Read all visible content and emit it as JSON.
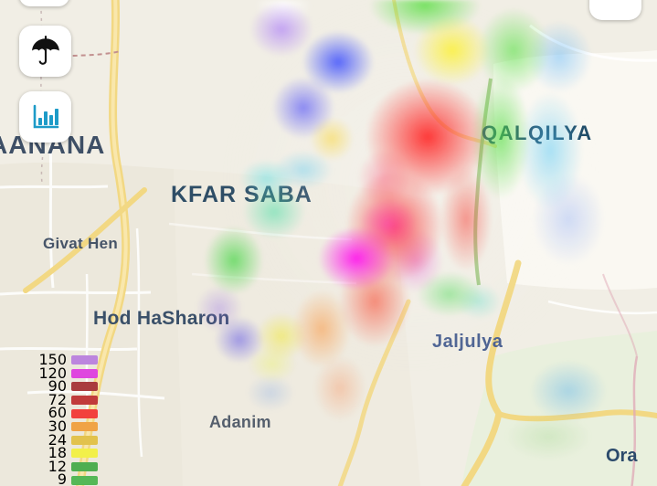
{
  "app": {
    "type": "map-heatmap-view"
  },
  "map": {
    "labels": [
      {
        "id": "raanana",
        "text": "AANANA"
      },
      {
        "id": "kfar-saba",
        "text": "KFAR SABA"
      },
      {
        "id": "qalqilya",
        "text": "QALQILYA"
      },
      {
        "id": "givat-hen",
        "text": "Givat Hen"
      },
      {
        "id": "hod-hasharon",
        "text": "Hod HaSharon"
      },
      {
        "id": "jaljulya",
        "text": "Jaljulya"
      },
      {
        "id": "adanim",
        "text": "Adanim"
      },
      {
        "id": "oranit",
        "text": "Ora"
      }
    ]
  },
  "controls": {
    "umbrella_icon": "umbrella",
    "chart_icon": "bar-chart",
    "chart_icon_color": "#1d9bc8",
    "umbrella_icon_color": "#111111"
  },
  "legend": {
    "rows": [
      {
        "value": "150",
        "color": "#bc85de"
      },
      {
        "value": "120",
        "color": "#df46df"
      },
      {
        "value": "90",
        "color": "#a93c3e"
      },
      {
        "value": "72",
        "color": "#c13b3b"
      },
      {
        "value": "60",
        "color": "#f2413d"
      },
      {
        "value": "30",
        "color": "#f0a345"
      },
      {
        "value": "24",
        "color": "#e2c24d"
      },
      {
        "value": "18",
        "color": "#f2f04a"
      },
      {
        "value": "12",
        "color": "#4fae51"
      },
      {
        "value": "9",
        "color": "#55b857"
      }
    ]
  }
}
